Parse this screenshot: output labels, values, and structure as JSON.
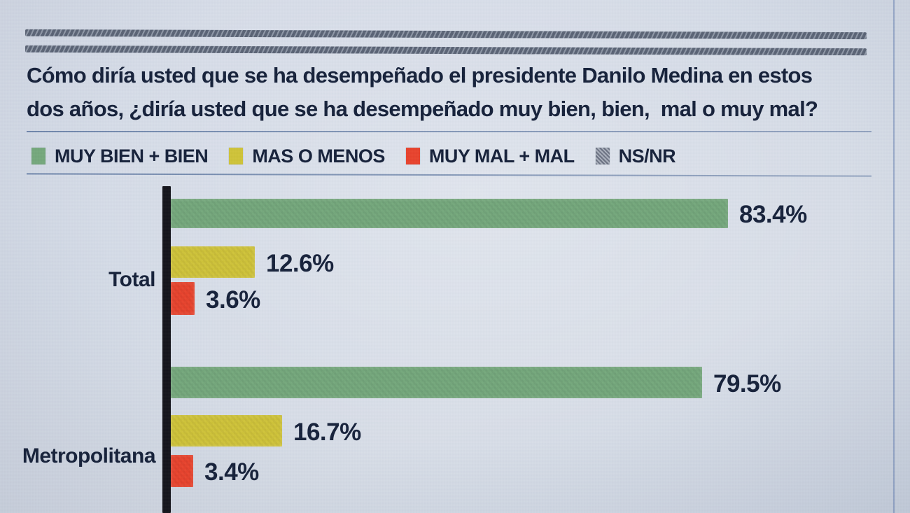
{
  "title": {
    "line1": "Cómo diría usted que se ha desempeñado el presidente Danilo Medina en estos",
    "line2": "dos años, ¿diría usted que se ha desempeñado muy bien, bien,  mal o muy mal?"
  },
  "legend": {
    "items": [
      {
        "label": "MUY BIEN + BIEN",
        "color": "#75a87c",
        "swatch": "solid"
      },
      {
        "label": "MAS O MENOS",
        "color": "#cfc339",
        "swatch": "solid"
      },
      {
        "label": "MUY MAL + MAL",
        "color": "#e8432d",
        "swatch": "solid"
      },
      {
        "label": "NS/NR",
        "color": "#8b919c",
        "swatch": "hatched"
      }
    ]
  },
  "chart_data": {
    "type": "bar",
    "orientation": "horizontal",
    "value_unit": "%",
    "xlim": [
      0,
      100
    ],
    "legend_position": "top",
    "grid": false,
    "categories": [
      "Total",
      "Metropolitana"
    ],
    "series": [
      {
        "name": "MUY BIEN + BIEN",
        "color": "#75a87c",
        "values": [
          83.4,
          79.5
        ],
        "labels": [
          "83.4%",
          "79.5%"
        ]
      },
      {
        "name": "MAS O MENOS",
        "color": "#cfc339",
        "values": [
          12.6,
          16.7
        ],
        "labels": [
          "12.6%",
          "16.7%"
        ]
      },
      {
        "name": "MUY MAL + MAL",
        "color": "#e8432d",
        "values": [
          3.6,
          3.4
        ],
        "labels": [
          "3.6%",
          "3.4%"
        ]
      },
      {
        "name": "NS/NR",
        "color": "#8b919c",
        "values": [
          null,
          null
        ],
        "labels": [
          null,
          null
        ]
      }
    ]
  },
  "colors": {
    "paper": "#d4dbe6",
    "ink": "#16213a",
    "axis": "#14141b",
    "rule": "#3a5488",
    "green": "#75a87c",
    "yellow": "#cfc339",
    "red": "#e8432d",
    "gray": "#8b919c"
  }
}
